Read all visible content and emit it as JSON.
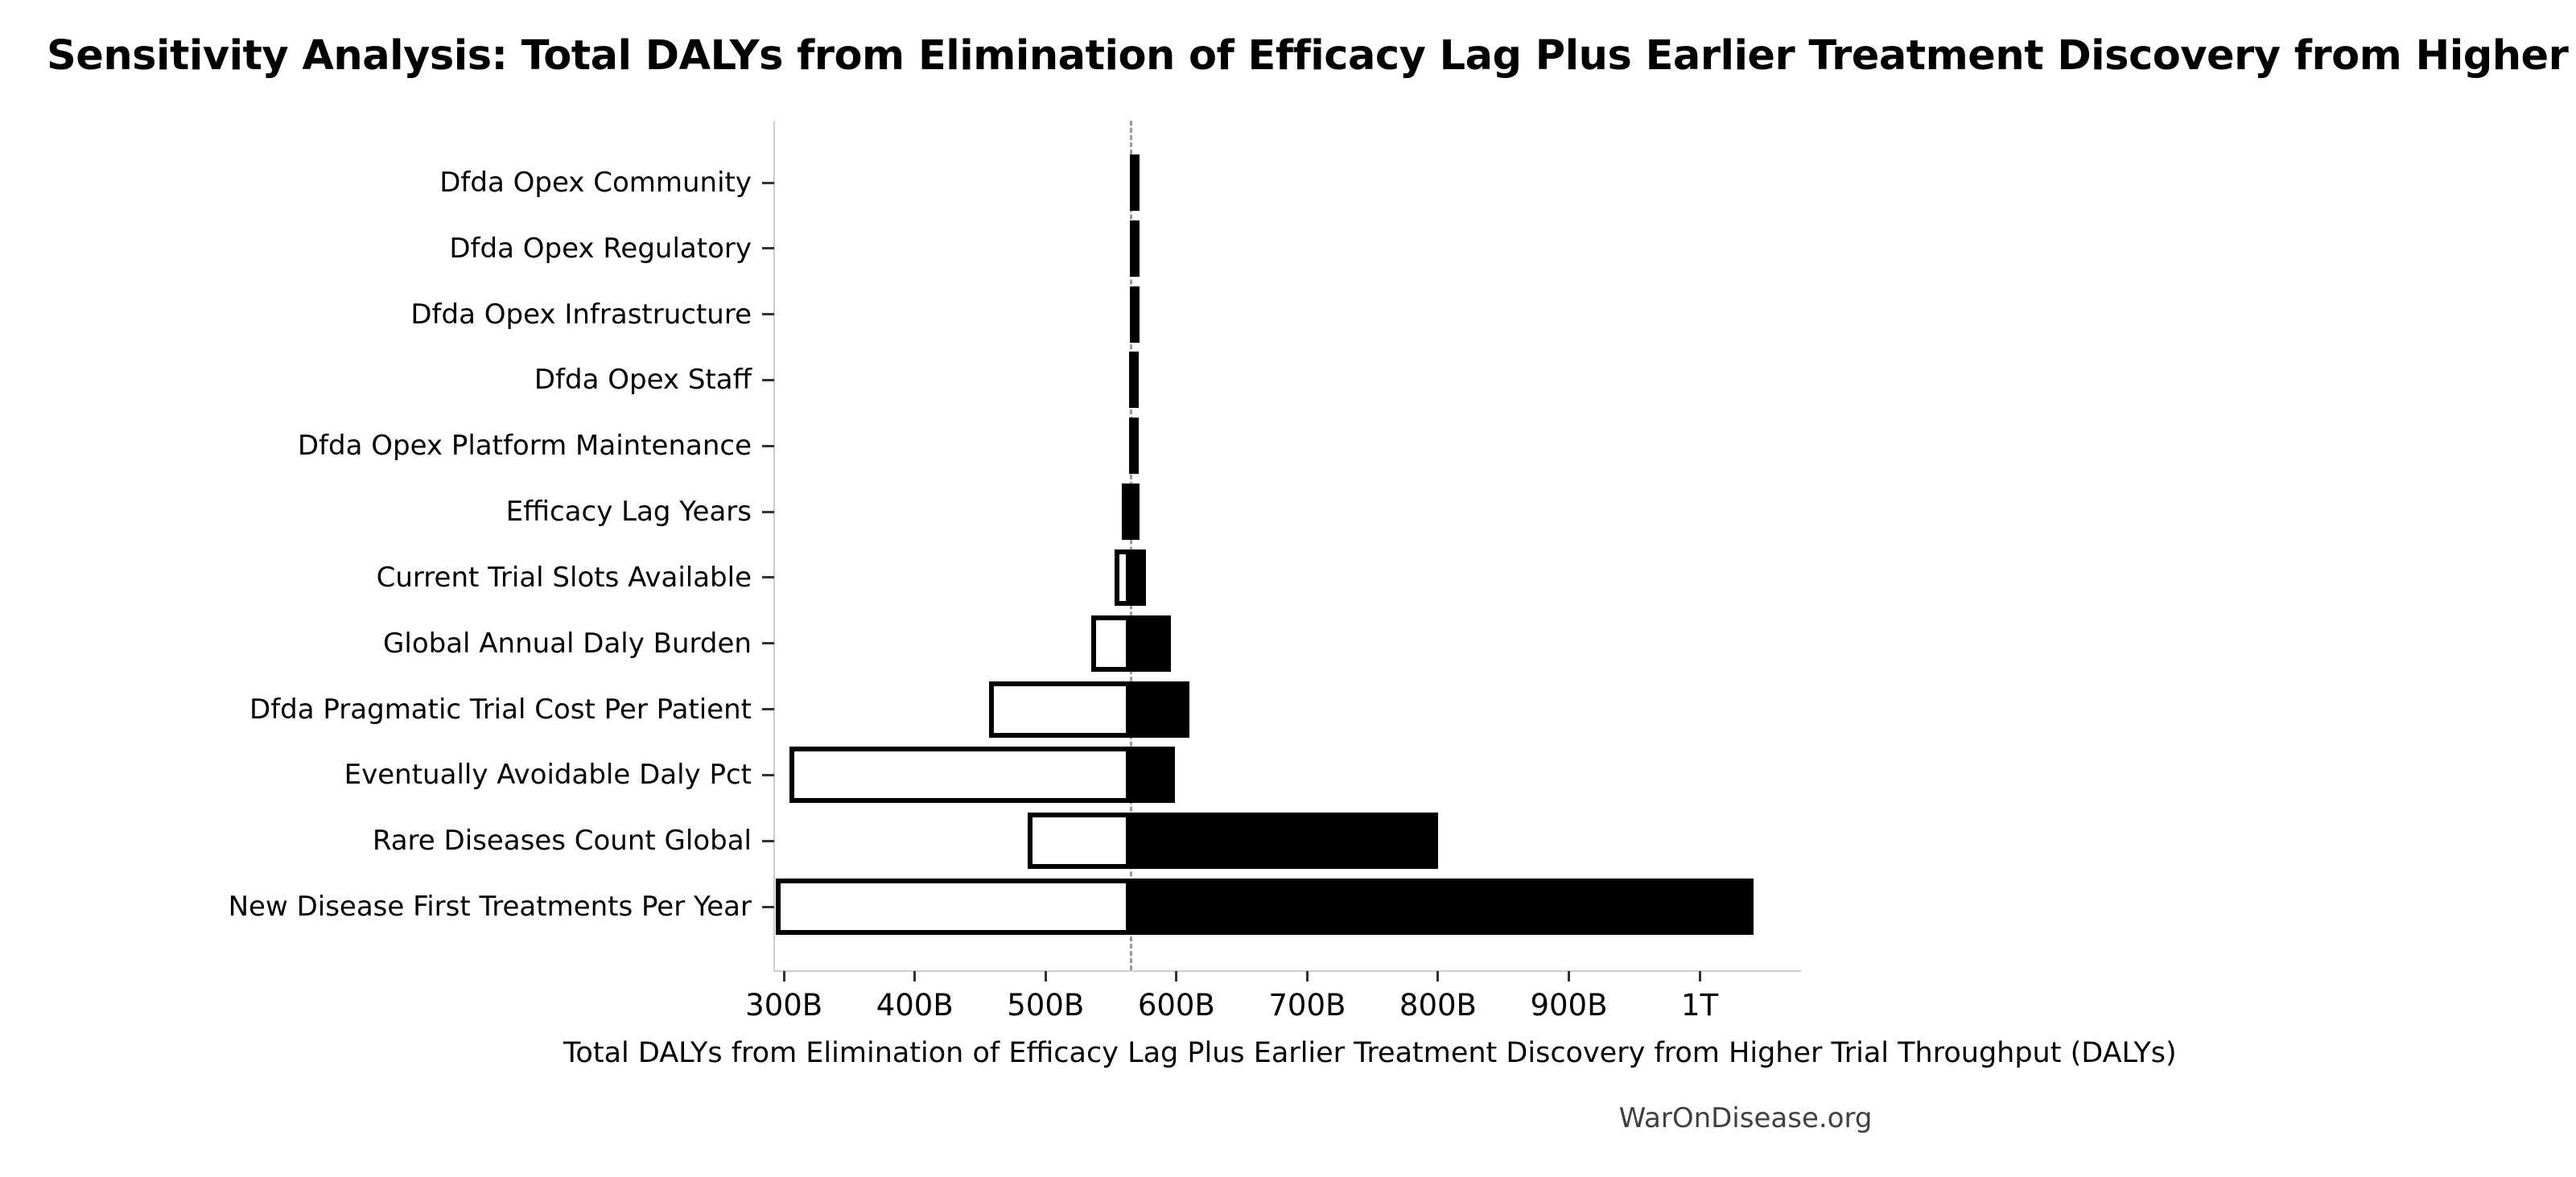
{
  "title": "Sensitivity Analysis: Total DALYs from Elimination of Efficacy Lag Plus Earlier Treatment Discovery from Higher Trial Throughput",
  "footer": "WarOnDisease.org",
  "colors": {
    "bar_fill_high": "#000000",
    "bar_fill_low": "#ffffff",
    "bar_border": "#000000",
    "baseline_dash": "#999999",
    "spine": "#cccccc",
    "tick": "#333333",
    "text": "#000000",
    "footer_text": "#404040"
  },
  "chart_data": {
    "type": "bar",
    "subtype": "tornado",
    "orientation": "horizontal",
    "title": "Sensitivity Analysis: Total DALYs from Elimination of Efficacy Lag Plus Earlier Treatment Discovery from Higher Trial Throughput",
    "xlabel": "Total DALYs from Elimination of Efficacy Lag Plus Earlier Treatment Discovery from Higher Trial Throughput (DALYs)",
    "ylabel": "",
    "unit": "billions of DALYs",
    "grid": false,
    "legend": false,
    "baseline_value": 565.3,
    "xlim": [
      292.5,
      1077.5
    ],
    "x_ticks": [
      {
        "value": 300,
        "label": "300B"
      },
      {
        "value": 400,
        "label": "400B"
      },
      {
        "value": 500,
        "label": "500B"
      },
      {
        "value": 600,
        "label": "600B"
      },
      {
        "value": 700,
        "label": "700B"
      },
      {
        "value": 800,
        "label": "800B"
      },
      {
        "value": 900,
        "label": "900B"
      },
      {
        "value": 1000,
        "label": "1T"
      }
    ],
    "categories": [
      "Dfda Opex Community",
      "Dfda Opex Regulatory",
      "Dfda Opex Infrastructure",
      "Dfda Opex Staff",
      "Dfda Opex Platform Maintenance",
      "Efficacy Lag Years",
      "Current Trial Slots Available",
      "Global Annual Daly Burden",
      "Dfda Pragmatic Trial Cost Per Patient",
      "Eventually Avoidable Daly Pct",
      "Rare Diseases Count Global",
      "New Disease First Treatments Per Year"
    ],
    "series": [
      {
        "name": "low_estimate",
        "values": [
          564.3,
          564.2,
          564.2,
          564.1,
          563.9,
          558,
          553,
          535,
          457,
          304,
          486,
          294
        ]
      },
      {
        "name": "high_estimate",
        "values": [
          565.9,
          566.0,
          566.1,
          566.2,
          566.4,
          572,
          577,
          596,
          610,
          599,
          800,
          1041
        ]
      }
    ]
  }
}
